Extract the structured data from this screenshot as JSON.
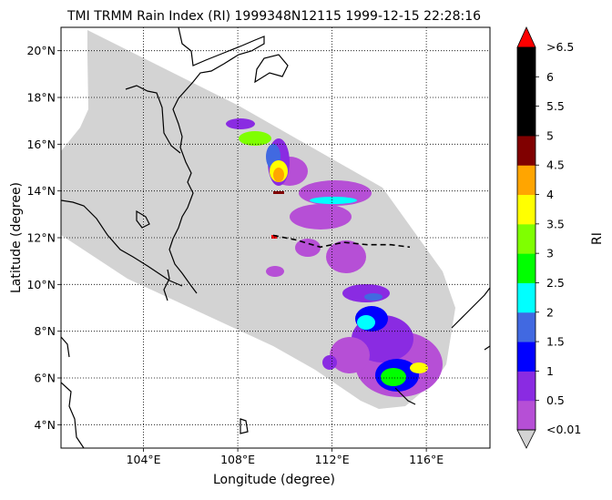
{
  "title": "TMI TRMM Rain Index (RI) 1999348N12115 1999-12-15 22:28:16",
  "map": {
    "xlabel": "Longitude (degree)",
    "ylabel": "Latitude (degree)",
    "lon_range": [
      100.5,
      118.7
    ],
    "lat_range": [
      3.0,
      21.0
    ],
    "lon_ticks": [
      {
        "value": 104,
        "label": "104°E"
      },
      {
        "value": 108,
        "label": "108°E"
      },
      {
        "value": 112,
        "label": "112°E"
      },
      {
        "value": 116,
        "label": "116°E"
      }
    ],
    "lat_ticks": [
      {
        "value": 4,
        "label": "4°N"
      },
      {
        "value": 6,
        "label": "6°N"
      },
      {
        "value": 8,
        "label": "8°N"
      },
      {
        "value": 10,
        "label": "10°N"
      },
      {
        "value": 12,
        "label": "12°N"
      },
      {
        "value": 14,
        "label": "14°N"
      },
      {
        "value": 16,
        "label": "16°N"
      },
      {
        "value": 18,
        "label": "18°N"
      },
      {
        "value": 20,
        "label": "20°N"
      }
    ],
    "grid": "dotted",
    "swath_color": "#d3d3d3",
    "track": {
      "style": "dashed",
      "points": [
        [
          109.5,
          12.1
        ],
        [
          110.5,
          11.9
        ],
        [
          111.5,
          11.6
        ],
        [
          112.5,
          11.8
        ],
        [
          113.5,
          11.7
        ],
        [
          114.5,
          11.7
        ],
        [
          115.3,
          11.6
        ]
      ]
    }
  },
  "colorbar": {
    "label": "RI",
    "under_label": "<0.01",
    "over_label": ">6.5",
    "under_color": "#d3d3d3",
    "over_color": "#ff0000",
    "bounds": [
      "0.5",
      "1",
      "1.5",
      "2",
      "2.5",
      "3",
      "3.5",
      "4",
      "4.5",
      "5",
      "5.5",
      "6"
    ],
    "colors": [
      "#b64fd6",
      "#8a2be2",
      "#0000ff",
      "#4169e1",
      "#00ffff",
      "#00ff00",
      "#7fff00",
      "#ffff00",
      "#ffa500",
      "#800000",
      "#000000",
      "#000000",
      "#000000"
    ]
  }
}
